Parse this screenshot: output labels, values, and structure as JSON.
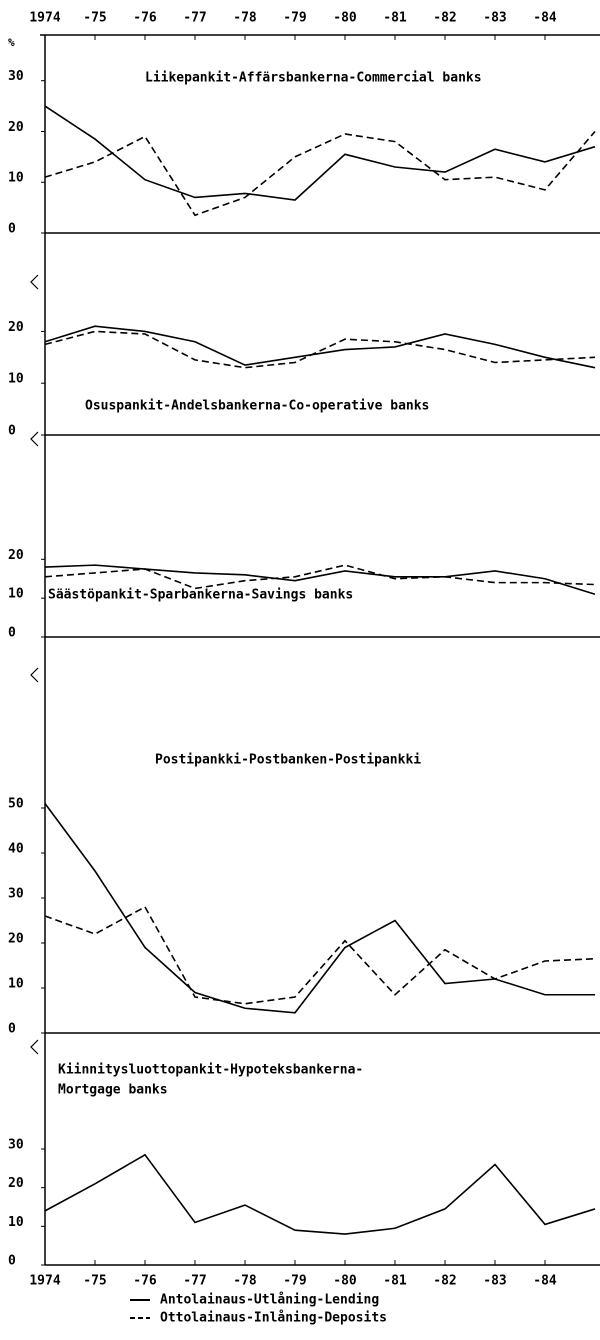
{
  "chart_data": [
    {
      "type": "line",
      "title": "Liikepankit-Affärsbankerna-Commercial banks",
      "y_unit": "%",
      "x": [
        1974,
        1975,
        1976,
        1977,
        1978,
        1979,
        1980,
        1981,
        1982,
        1983,
        1984,
        1985
      ],
      "xlim": [
        1974,
        1985
      ],
      "xticks": [
        1974,
        {
          "value": 1975,
          "label": "-75"
        },
        {
          "value": 1976,
          "label": "-76"
        },
        {
          "value": 1977,
          "label": "-77"
        },
        {
          "value": 1978,
          "label": "-78"
        },
        {
          "value": 1979,
          "label": "-79"
        },
        {
          "value": 1980,
          "label": "-80"
        },
        {
          "value": 1981,
          "label": "-81"
        },
        {
          "value": 1982,
          "label": "-82"
        },
        {
          "value": 1983,
          "label": "-83"
        },
        {
          "value": 1984,
          "label": "-84"
        }
      ],
      "ylim": [
        0,
        39
      ],
      "yticks": [
        0,
        10,
        20,
        30
      ],
      "series": [
        {
          "name": "Antolainaus-Utlåning-Lending",
          "color": "#000000",
          "style": "solid",
          "values": [
            25,
            18.5,
            10.5,
            7,
            7.8,
            6.5,
            15.5,
            13,
            12,
            16.5,
            14,
            17
          ]
        },
        {
          "name": "Ottolainaus-Inlåning-Deposits",
          "color": "#000000",
          "style": "dashed",
          "values": [
            11,
            14,
            19,
            3.5,
            7,
            15,
            19.5,
            18,
            10.5,
            11,
            8.5,
            20
          ]
        }
      ]
    },
    {
      "type": "line",
      "title": "Osuspankit-Andelsbankerna-Co-operative banks",
      "x": [
        1974,
        1975,
        1976,
        1977,
        1978,
        1979,
        1980,
        1981,
        1982,
        1983,
        1984,
        1985
      ],
      "xlim": [
        1974,
        1985
      ],
      "ylim": [
        0,
        39
      ],
      "yticks": [
        0,
        10,
        20
      ],
      "series": [
        {
          "color": "#000000",
          "style": "solid",
          "values": [
            18,
            21,
            20,
            18,
            13.5,
            15,
            16.5,
            17,
            19.5,
            17.5,
            15,
            13
          ]
        },
        {
          "color": "#000000",
          "style": "dashed",
          "values": [
            17.5,
            20,
            19.5,
            14.5,
            13,
            14,
            18.5,
            18,
            16.5,
            14,
            14.5,
            15
          ]
        }
      ]
    },
    {
      "type": "line",
      "title": "Säästöpankit-Sparbankerna-Savings banks",
      "x": [
        1974,
        1975,
        1976,
        1977,
        1978,
        1979,
        1980,
        1981,
        1982,
        1983,
        1984,
        1985
      ],
      "xlim": [
        1974,
        1985
      ],
      "ylim": [
        0,
        52
      ],
      "yticks": [
        0,
        10,
        20
      ],
      "series": [
        {
          "color": "#000000",
          "style": "solid",
          "values": [
            18,
            18.5,
            17.5,
            16.5,
            16,
            14.5,
            17,
            15.5,
            15.5,
            17,
            15,
            11
          ]
        },
        {
          "color": "#000000",
          "style": "dashed",
          "values": [
            15.5,
            16.5,
            17.5,
            12.5,
            14.5,
            15.5,
            18.5,
            15,
            15.5,
            14,
            14,
            13.5
          ]
        }
      ]
    },
    {
      "type": "line",
      "title": "Postipankki-Postbanken-Postipankki",
      "x": [
        1974,
        1975,
        1976,
        1977,
        1978,
        1979,
        1980,
        1981,
        1982,
        1983,
        1984,
        1985
      ],
      "xlim": [
        1974,
        1985
      ],
      "ylim": [
        0,
        88
      ],
      "yticks": [
        0,
        10,
        20,
        30,
        40,
        50
      ],
      "series": [
        {
          "color": "#000000",
          "style": "solid",
          "values": [
            51,
            36,
            19,
            9,
            5.5,
            4.5,
            19,
            25,
            11,
            12,
            8.5,
            8.5
          ]
        },
        {
          "color": "#000000",
          "style": "dashed",
          "values": [
            26,
            22,
            28,
            8,
            6.5,
            8,
            20.5,
            8.5,
            18.5,
            12,
            16,
            16.5
          ]
        }
      ]
    },
    {
      "type": "line",
      "title": [
        "Kiinnitysluottopankit-Hypoteksbankerna-",
        "Mortgage banks"
      ],
      "x": [
        1974,
        1975,
        1976,
        1977,
        1978,
        1979,
        1980,
        1981,
        1982,
        1983,
        1984,
        1985
      ],
      "xlim": [
        1974,
        1985
      ],
      "xticks": [
        1974,
        {
          "value": 1975,
          "label": "-75"
        },
        {
          "value": 1976,
          "label": "-76"
        },
        {
          "value": 1977,
          "label": "-77"
        },
        {
          "value": 1978,
          "label": "-78"
        },
        {
          "value": 1979,
          "label": "-79"
        },
        {
          "value": 1980,
          "label": "-80"
        },
        {
          "value": 1981,
          "label": "-81"
        },
        {
          "value": 1982,
          "label": "-82"
        },
        {
          "value": 1983,
          "label": "-83"
        },
        {
          "value": 1984,
          "label": "-84"
        }
      ],
      "ylim": [
        0,
        60
      ],
      "yticks": [
        0,
        10,
        20,
        30
      ],
      "series": [
        {
          "color": "#000000",
          "style": "solid",
          "values": [
            14,
            21,
            28.5,
            11,
            15.5,
            9,
            8,
            9.5,
            14.5,
            26,
            10.5,
            14.5
          ]
        }
      ]
    }
  ]
}
